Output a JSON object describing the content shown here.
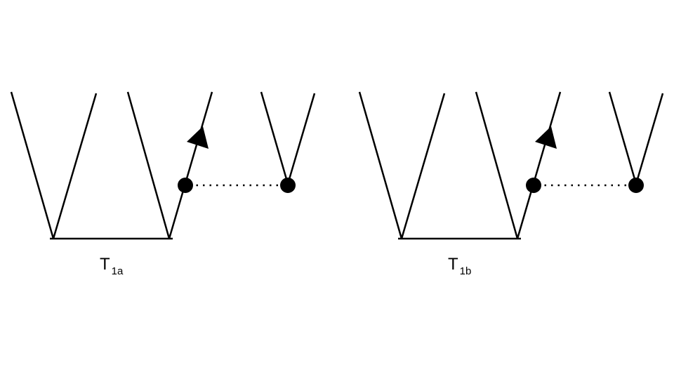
{
  "diagrams": [
    {
      "id": "1a",
      "label_main": "T",
      "label_sub": "1a"
    },
    {
      "id": "1b",
      "label_main": "T",
      "label_sub": "1b"
    }
  ],
  "colors": {
    "stroke": "#000000",
    "background": "#ffffff"
  }
}
